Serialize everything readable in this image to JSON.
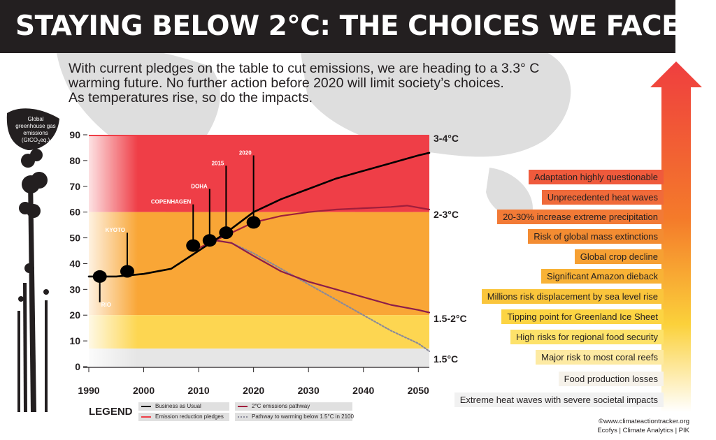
{
  "header": {
    "title": "STAYING BELOW 2°C: THE CHOICES WE FACE",
    "subtitle_lines": [
      "With current pledges on the table to cut emissions, we are heading to a 3.3° C",
      "warming future. No further action before 2020 will limit society’s choices.",
      "As temperatures rise, so do the impacts."
    ]
  },
  "smokestack_label_lines": [
    "Global",
    "greenhouse gas",
    "emissions",
    "(GtCO",
    "eq.)"
  ],
  "chart_data": {
    "type": "line",
    "x_ticks": [
      "1990",
      "2000",
      "2010",
      "2020",
      "2030",
      "2040",
      "2050"
    ],
    "y_ticks": [
      "0",
      "10",
      "20",
      "30",
      "40",
      "50",
      "60",
      "70",
      "80",
      "90"
    ],
    "xlim": [
      1990,
      2052
    ],
    "ylim": [
      0,
      90
    ],
    "bands": [
      {
        "label": "3-4°C",
        "from": 60,
        "to": 90,
        "color": "#ef3e47"
      },
      {
        "label": "2-3°C",
        "from": 20,
        "to": 60,
        "color": "#f9a636"
      },
      {
        "label": "1.5-2°C",
        "from": 7,
        "to": 20,
        "color": "#fdd651"
      },
      {
        "label": "1.5°C",
        "from": 0,
        "to": 7,
        "color": "#e6e6e6"
      }
    ],
    "series": [
      {
        "name": "Business as Usual",
        "color": "#000000",
        "style": "solid",
        "x": [
          1990,
          1995,
          2000,
          2005,
          2010,
          2015,
          2020,
          2025,
          2030,
          2035,
          2040,
          2045,
          2050,
          2052
        ],
        "y": [
          35,
          35,
          36,
          38,
          45,
          52,
          60,
          65,
          69,
          73,
          76,
          79,
          82,
          83
        ]
      },
      {
        "name": "Emission reduction pledges",
        "color": "#a01e3c",
        "style": "solid",
        "x": [
          2010,
          2013,
          2016,
          2020,
          2025,
          2030,
          2035,
          2040,
          2045,
          2048,
          2052
        ],
        "y": [
          46,
          49,
          52,
          56,
          58.5,
          60,
          61,
          61.5,
          62,
          62.5,
          61
        ]
      },
      {
        "name": "2°C emissions pathway",
        "color": "#8c1d4a",
        "style": "solid",
        "x": [
          2013,
          2016,
          2020,
          2025,
          2030,
          2035,
          2040,
          2045,
          2050,
          2052
        ],
        "y": [
          49,
          48,
          43,
          37,
          33,
          30,
          27,
          24,
          22,
          21
        ]
      },
      {
        "name": "Pathway to warming below 1.5°C in 2100",
        "color": "#8a8a9a",
        "style": "dotted",
        "x": [
          2013,
          2016,
          2020,
          2025,
          2030,
          2035,
          2040,
          2045,
          2050,
          2052
        ],
        "y": [
          49,
          48,
          44,
          38,
          32,
          26,
          20,
          14,
          9,
          6
        ]
      }
    ],
    "milestones": [
      {
        "label": "RIO",
        "x": 1992,
        "y": 35,
        "label_y": 25
      },
      {
        "label": "KYOTO",
        "x": 1997,
        "y": 37,
        "label_y": 52
      },
      {
        "label": "COPENHAGEN",
        "x": 2009,
        "y": 47,
        "label_y": 63
      },
      {
        "label": "DOHA",
        "x": 2012,
        "y": 49,
        "label_y": 69
      },
      {
        "label": "2015",
        "x": 2015,
        "y": 52,
        "label_y": 78
      },
      {
        "label": "2020",
        "x": 2020,
        "y": 56,
        "label_y": 82
      }
    ]
  },
  "impacts": [
    {
      "text": "Adaptation highly questionable",
      "color": "#ef5a3c"
    },
    {
      "text": "Unprecedented heat waves",
      "color": "#f06a3a"
    },
    {
      "text": "20-30% increase extreme precipitation",
      "color": "#f27a36"
    },
    {
      "text": "Risk of global mass extinctions",
      "color": "#f38c32"
    },
    {
      "text": "Global crop decline",
      "color": "#f6a033"
    },
    {
      "text": "Significant Amazon dieback",
      "color": "#f8b236"
    },
    {
      "text": "Millions risk displacement by sea level rise",
      "color": "#fac53c"
    },
    {
      "text": "Tipping point for Greenland Ice Sheet",
      "color": "#fcd443"
    },
    {
      "text": "High risks for regional food security",
      "color": "#fde26a"
    },
    {
      "text": "Major risk to most coral reefs",
      "color": "#fdeaa3"
    },
    {
      "text": "Food production losses",
      "color": "#f6f2ea"
    },
    {
      "text": "Extreme heat waves with severe societal impacts",
      "color": "#f1f1f1"
    }
  ],
  "legend": {
    "title": "LEGEND",
    "items": [
      {
        "name": "Business as Usual",
        "color": "#000000"
      },
      {
        "name": "2°C emissions pathway",
        "color": "#a01e3c"
      },
      {
        "name": "Emission reduction pledges",
        "color": "#ef3e47"
      },
      {
        "name": "Pathway to warming below 1.5°C in 2100",
        "color": "#8a8a9a"
      }
    ]
  },
  "credit": {
    "line1": "©www.climateactiontracker.org",
    "line2": "Ecofys | Climate Analytics | PIK"
  },
  "colors": {
    "title_bar": "#231f20",
    "arrow_top": "#ef3e3f",
    "arrow_mid": "#f7941d",
    "arrow_bottom": "#ffffff",
    "map": "#dcdcdc"
  }
}
